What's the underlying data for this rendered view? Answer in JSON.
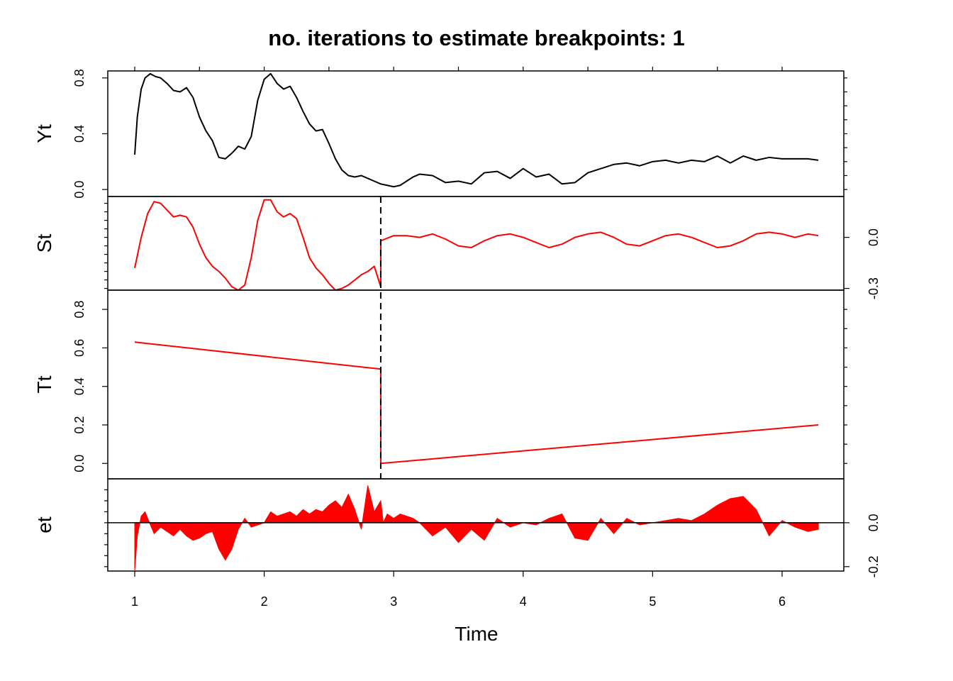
{
  "title": "no. iterations to estimate breakpoints: 1",
  "xlabel": "Time",
  "colors": {
    "series": "#ff0000",
    "data": "#000000",
    "breakpoint": "#000000"
  },
  "chart_data": {
    "type": "line",
    "title": "no. iterations to estimate breakpoints: 1",
    "xlabel": "Time",
    "x_range": [
      1,
      6.28
    ],
    "x_ticks": [
      "1",
      "2",
      "3",
      "4",
      "5",
      "6"
    ],
    "breakpoint": 2.9,
    "panels": [
      {
        "name": "Yt",
        "axis_side": "left",
        "ylim": [
          -0.05,
          0.85
        ],
        "ticks": [
          "0.0",
          "0.4",
          "0.8"
        ],
        "color": "#000000",
        "style": "line",
        "x": [
          1.0,
          1.02,
          1.05,
          1.08,
          1.12,
          1.16,
          1.2,
          1.25,
          1.3,
          1.35,
          1.4,
          1.45,
          1.5,
          1.55,
          1.6,
          1.65,
          1.7,
          1.75,
          1.8,
          1.85,
          1.9,
          1.95,
          2.0,
          2.05,
          2.1,
          2.15,
          2.2,
          2.25,
          2.3,
          2.35,
          2.4,
          2.45,
          2.5,
          2.55,
          2.6,
          2.65,
          2.7,
          2.75,
          2.8,
          2.85,
          2.9,
          2.95,
          3.0,
          3.05,
          3.1,
          3.15,
          3.2,
          3.3,
          3.4,
          3.5,
          3.6,
          3.7,
          3.8,
          3.9,
          4.0,
          4.1,
          4.2,
          4.3,
          4.4,
          4.5,
          4.6,
          4.7,
          4.8,
          4.9,
          5.0,
          5.1,
          5.2,
          5.3,
          5.4,
          5.5,
          5.6,
          5.7,
          5.8,
          5.9,
          6.0,
          6.1,
          6.2,
          6.28
        ],
        "y": [
          0.25,
          0.52,
          0.72,
          0.8,
          0.83,
          0.81,
          0.8,
          0.76,
          0.71,
          0.7,
          0.73,
          0.66,
          0.52,
          0.42,
          0.35,
          0.23,
          0.22,
          0.26,
          0.31,
          0.29,
          0.38,
          0.64,
          0.79,
          0.83,
          0.76,
          0.72,
          0.74,
          0.66,
          0.56,
          0.47,
          0.42,
          0.43,
          0.33,
          0.22,
          0.14,
          0.1,
          0.09,
          0.1,
          0.08,
          0.06,
          0.04,
          0.03,
          0.02,
          0.03,
          0.06,
          0.09,
          0.11,
          0.1,
          0.05,
          0.06,
          0.04,
          0.12,
          0.13,
          0.08,
          0.15,
          0.09,
          0.11,
          0.04,
          0.05,
          0.12,
          0.15,
          0.18,
          0.19,
          0.17,
          0.2,
          0.21,
          0.19,
          0.21,
          0.2,
          0.24,
          0.19,
          0.24,
          0.21,
          0.23,
          0.22,
          0.22,
          0.22,
          0.21
        ]
      },
      {
        "name": "St",
        "axis_side": "right",
        "ylim": [
          -0.31,
          0.24
        ],
        "ticks": [
          "-0.3",
          "0.0"
        ],
        "color": "#ff0000",
        "style": "line",
        "x": [
          1.0,
          1.05,
          1.1,
          1.15,
          1.2,
          1.25,
          1.3,
          1.35,
          1.4,
          1.45,
          1.5,
          1.55,
          1.6,
          1.65,
          1.7,
          1.75,
          1.8,
          1.85,
          1.9,
          1.95,
          2.0,
          2.05,
          2.1,
          2.15,
          2.2,
          2.25,
          2.3,
          2.35,
          2.4,
          2.45,
          2.5,
          2.55,
          2.6,
          2.65,
          2.7,
          2.75,
          2.8,
          2.85,
          2.9,
          2.9,
          3.0,
          3.1,
          3.2,
          3.3,
          3.4,
          3.5,
          3.6,
          3.7,
          3.8,
          3.9,
          4.0,
          4.1,
          4.2,
          4.3,
          4.4,
          4.5,
          4.6,
          4.7,
          4.8,
          4.9,
          5.0,
          5.1,
          5.2,
          5.3,
          5.4,
          5.5,
          5.6,
          5.7,
          5.8,
          5.9,
          6.0,
          6.1,
          6.2,
          6.28
        ],
        "y": [
          -0.18,
          0.0,
          0.14,
          0.21,
          0.2,
          0.16,
          0.12,
          0.13,
          0.12,
          0.06,
          -0.04,
          -0.12,
          -0.17,
          -0.2,
          -0.24,
          -0.29,
          -0.31,
          -0.28,
          -0.12,
          0.1,
          0.22,
          0.22,
          0.15,
          0.12,
          0.14,
          0.11,
          0.0,
          -0.12,
          -0.18,
          -0.22,
          -0.27,
          -0.31,
          -0.3,
          -0.28,
          -0.25,
          -0.22,
          -0.2,
          -0.17,
          -0.29,
          -0.02,
          0.01,
          0.01,
          0.0,
          0.02,
          -0.01,
          -0.05,
          -0.06,
          -0.02,
          0.01,
          0.02,
          0.0,
          -0.03,
          -0.06,
          -0.04,
          0.0,
          0.02,
          0.03,
          0.0,
          -0.04,
          -0.05,
          -0.02,
          0.01,
          0.02,
          0.0,
          -0.03,
          -0.06,
          -0.05,
          -0.02,
          0.02,
          0.03,
          0.02,
          0.0,
          0.02,
          0.01
        ]
      },
      {
        "name": "Tt",
        "axis_side": "left",
        "ylim": [
          -0.08,
          0.9
        ],
        "ticks": [
          "0.0",
          "0.2",
          "0.4",
          "0.6",
          "0.8"
        ],
        "color": "#ff0000",
        "style": "line",
        "x": [
          1.0,
          2.9,
          2.9,
          6.28
        ],
        "y": [
          0.63,
          0.49,
          0.0,
          0.2
        ]
      },
      {
        "name": "et",
        "axis_side": "right",
        "ylim": [
          -0.22,
          0.2
        ],
        "ticks": [
          "-0.2",
          "0.0"
        ],
        "color": "#ff0000",
        "style": "area",
        "x": [
          1.0,
          1.02,
          1.05,
          1.08,
          1.1,
          1.15,
          1.2,
          1.25,
          1.3,
          1.35,
          1.4,
          1.45,
          1.5,
          1.55,
          1.6,
          1.65,
          1.7,
          1.75,
          1.8,
          1.85,
          1.9,
          1.95,
          2.0,
          2.05,
          2.1,
          2.15,
          2.2,
          2.25,
          2.3,
          2.35,
          2.4,
          2.45,
          2.5,
          2.55,
          2.6,
          2.65,
          2.7,
          2.75,
          2.8,
          2.85,
          2.9,
          2.92,
          2.95,
          3.0,
          3.05,
          3.1,
          3.15,
          3.2,
          3.3,
          3.4,
          3.5,
          3.6,
          3.7,
          3.8,
          3.9,
          4.0,
          4.1,
          4.2,
          4.3,
          4.4,
          4.5,
          4.6,
          4.7,
          4.8,
          4.9,
          5.0,
          5.1,
          5.2,
          5.3,
          5.4,
          5.5,
          5.6,
          5.7,
          5.8,
          5.9,
          6.0,
          6.1,
          6.2,
          6.28
        ],
        "y": [
          -0.22,
          -0.06,
          0.03,
          0.05,
          0.02,
          -0.05,
          -0.02,
          -0.04,
          -0.06,
          -0.03,
          -0.06,
          -0.08,
          -0.07,
          -0.05,
          -0.04,
          -0.12,
          -0.17,
          -0.12,
          -0.03,
          0.02,
          -0.02,
          -0.01,
          0.0,
          0.05,
          0.03,
          0.04,
          0.05,
          0.03,
          0.06,
          0.04,
          0.06,
          0.05,
          0.08,
          0.1,
          0.07,
          0.13,
          0.06,
          -0.03,
          0.17,
          0.05,
          0.1,
          0.0,
          0.04,
          0.02,
          0.04,
          0.03,
          0.02,
          0.0,
          -0.06,
          -0.02,
          -0.09,
          -0.03,
          -0.08,
          0.02,
          -0.02,
          0.0,
          -0.01,
          0.02,
          0.04,
          -0.07,
          -0.08,
          0.02,
          -0.05,
          0.02,
          -0.01,
          0.0,
          0.01,
          0.02,
          0.01,
          0.04,
          0.08,
          0.11,
          0.12,
          0.06,
          -0.06,
          0.01,
          -0.02,
          -0.04,
          -0.03
        ]
      }
    ]
  }
}
